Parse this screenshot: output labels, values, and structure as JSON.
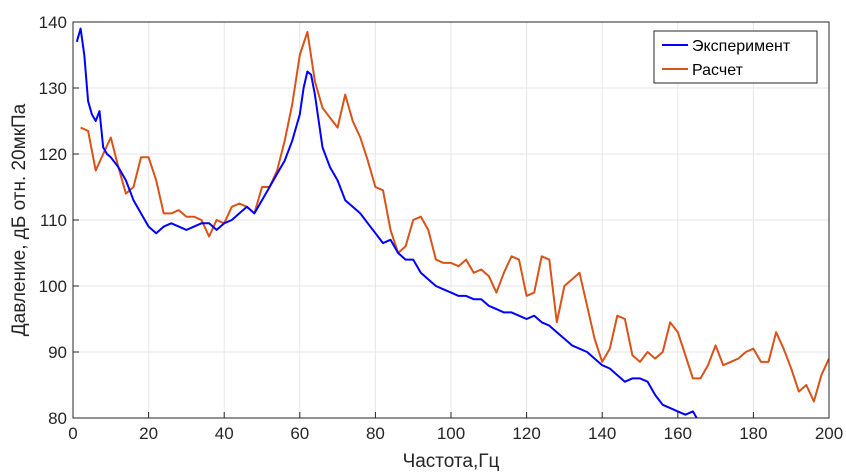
{
  "chart_data": {
    "type": "line",
    "title": "",
    "xlabel": "Частота,Гц",
    "ylabel": "Давление, дБ отн. 20мкПа",
    "xlim": [
      0,
      200
    ],
    "ylim": [
      80,
      140
    ],
    "xticks": [
      0,
      20,
      40,
      60,
      80,
      100,
      120,
      140,
      160,
      180,
      200
    ],
    "yticks": [
      80,
      90,
      100,
      110,
      120,
      130,
      140
    ],
    "grid": true,
    "legend_position": "top-right",
    "series": [
      {
        "name": "Эксперимент",
        "color": "#0000ff",
        "x": [
          1,
          2,
          3,
          4,
          5,
          6,
          7,
          8,
          9,
          10,
          12,
          14,
          16,
          18,
          20,
          22,
          24,
          26,
          28,
          30,
          32,
          34,
          36,
          38,
          40,
          42,
          44,
          46,
          48,
          50,
          52,
          54,
          56,
          58,
          60,
          61,
          62,
          63,
          64,
          65,
          66,
          68,
          70,
          72,
          74,
          76,
          78,
          80,
          82,
          84,
          86,
          88,
          90,
          92,
          94,
          96,
          98,
          100,
          102,
          104,
          106,
          108,
          110,
          112,
          114,
          116,
          118,
          120,
          122,
          124,
          126,
          128,
          130,
          132,
          134,
          136,
          138,
          140,
          142,
          144,
          146,
          148,
          150,
          152,
          154,
          156,
          158,
          160,
          162,
          164,
          165
        ],
        "values": [
          137,
          139,
          135,
          128,
          126,
          125,
          126.5,
          121,
          120,
          119.5,
          118,
          116,
          113,
          111,
          109,
          108,
          109,
          109.5,
          109,
          108.5,
          109,
          109.5,
          109.5,
          108.5,
          109.5,
          110,
          111,
          112,
          111,
          113,
          115,
          117,
          119,
          122,
          126,
          130,
          132.5,
          132,
          129,
          125,
          121,
          118,
          116,
          113,
          112,
          111,
          109.5,
          108,
          106.5,
          107,
          105,
          104,
          104,
          102,
          101,
          100,
          99.5,
          99,
          98.5,
          98.5,
          98,
          98,
          97,
          96.5,
          96,
          96,
          95.5,
          95,
          95.5,
          94.5,
          94,
          93,
          92,
          91,
          90.5,
          90,
          89,
          88,
          87.5,
          86.5,
          85.5,
          86,
          86,
          85.5,
          83.5,
          82,
          81.5,
          81,
          80.5,
          81,
          80
        ]
      },
      {
        "name": "Расчет",
        "color": "#d95319",
        "x": [
          2,
          4,
          6,
          8,
          10,
          12,
          14,
          16,
          18,
          20,
          22,
          24,
          26,
          28,
          30,
          32,
          34,
          36,
          38,
          40,
          42,
          44,
          46,
          48,
          50,
          52,
          54,
          56,
          58,
          60,
          62,
          64,
          66,
          68,
          70,
          72,
          74,
          76,
          78,
          80,
          82,
          84,
          86,
          88,
          90,
          92,
          94,
          96,
          98,
          100,
          102,
          104,
          106,
          108,
          110,
          112,
          114,
          116,
          118,
          120,
          122,
          124,
          126,
          128,
          130,
          132,
          134,
          136,
          138,
          140,
          142,
          144,
          146,
          148,
          150,
          152,
          154,
          156,
          158,
          160,
          162,
          164,
          166,
          168,
          170,
          172,
          174,
          176,
          178,
          180,
          182,
          184,
          186,
          188,
          190,
          192,
          194,
          196,
          198,
          200
        ],
        "values": [
          124,
          123.5,
          117.5,
          120,
          122.5,
          118,
          114,
          115,
          119.5,
          119.5,
          116,
          111,
          111,
          111.5,
          110.5,
          110.5,
          110,
          107.5,
          110,
          109.5,
          112,
          112.5,
          112,
          111,
          115,
          115,
          117.5,
          122,
          127.5,
          135,
          138.5,
          131,
          127,
          125.5,
          124,
          129,
          125,
          122.5,
          119,
          115,
          114.5,
          108.5,
          105,
          106,
          110,
          110.5,
          108.5,
          104,
          103.5,
          103.5,
          103,
          104,
          102,
          102.5,
          101.5,
          99,
          102,
          104.5,
          104,
          98.5,
          99,
          104.5,
          104,
          94.5,
          100,
          101,
          102,
          97,
          92,
          88.5,
          90.5,
          95.5,
          95,
          89.5,
          88.5,
          90,
          89,
          90,
          94.5,
          93,
          89.5,
          86,
          86,
          88,
          91,
          88,
          88.5,
          89,
          90,
          90.5,
          88.5,
          88.5,
          93,
          90.5,
          87.5,
          84,
          85,
          82.5,
          86.5,
          89
        ]
      }
    ]
  }
}
